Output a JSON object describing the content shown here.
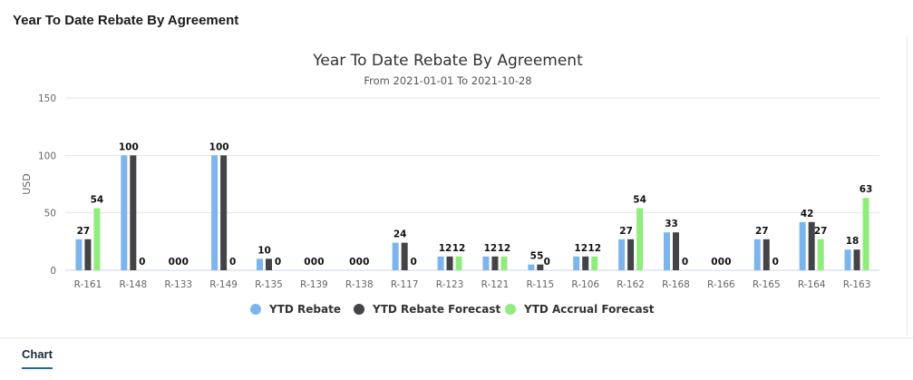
{
  "panel": {
    "title": "Year To Date Rebate By Agreement"
  },
  "chart_data": {
    "type": "bar",
    "title": "Year To Date Rebate By Agreement",
    "subtitle": "From 2021-01-01 To 2021-10-28",
    "xlabel": "",
    "ylabel": "USD",
    "ylim": [
      0,
      150
    ],
    "yticks": [
      0,
      50,
      100,
      150
    ],
    "grid": true,
    "legend_position": "bottom",
    "categories": [
      "R-161",
      "R-148",
      "R-133",
      "R-149",
      "R-135",
      "R-139",
      "R-138",
      "R-117",
      "R-123",
      "R-121",
      "R-115",
      "R-106",
      "R-162",
      "R-168",
      "R-166",
      "R-165",
      "R-164",
      "R-163"
    ],
    "series": [
      {
        "name": "YTD Rebate",
        "color": "#7cb5ec",
        "values": [
          27,
          100,
          0,
          100,
          10,
          0,
          0,
          24,
          12,
          12,
          5,
          12,
          27,
          33,
          0,
          27,
          42,
          18
        ]
      },
      {
        "name": "YTD Rebate Forecast",
        "color": "#434348",
        "values": [
          27,
          100,
          0,
          100,
          10,
          0,
          0,
          24,
          12,
          12,
          5,
          12,
          27,
          33,
          0,
          27,
          42,
          18
        ]
      },
      {
        "name": "YTD Accrual Forecast",
        "color": "#90ed7d",
        "values": [
          54,
          0,
          0,
          0,
          0,
          0,
          0,
          0,
          12,
          12,
          0,
          12,
          54,
          0,
          0,
          0,
          27,
          63
        ]
      }
    ],
    "data_labels": [
      [
        "27",
        null,
        "54"
      ],
      [
        "100",
        null,
        "0"
      ],
      [
        "0",
        "0",
        "0"
      ],
      [
        "100",
        null,
        "0"
      ],
      [
        "10",
        null,
        "0"
      ],
      [
        "0",
        "0",
        "0"
      ],
      [
        "0",
        "0",
        "0"
      ],
      [
        "24",
        null,
        "0"
      ],
      [
        "12",
        null,
        "12"
      ],
      [
        "12",
        null,
        "12"
      ],
      [
        "5",
        "5",
        "0"
      ],
      [
        "12",
        null,
        "12"
      ],
      [
        "27",
        null,
        "54"
      ],
      [
        "33",
        null,
        "0"
      ],
      [
        "0",
        "0",
        "0"
      ],
      [
        "27",
        null,
        "0"
      ],
      [
        "42",
        null,
        "27"
      ],
      [
        "18",
        null,
        "63"
      ]
    ]
  },
  "tabs": [
    {
      "label": "Chart"
    }
  ]
}
